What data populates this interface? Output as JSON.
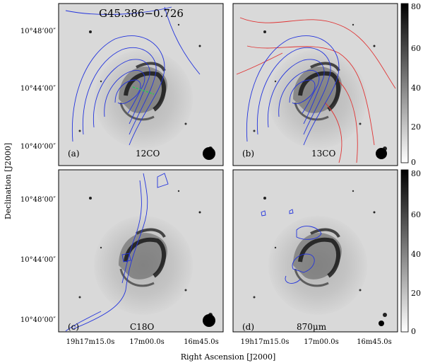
{
  "figure": {
    "source_name": "G45.386−0.726",
    "y_axis_title": "Declination [J2000]",
    "x_axis_title": "Right Ascension [J2000]",
    "dec_ticks": [
      "10°48’00″",
      "10°44’00″",
      "10°40’00″"
    ],
    "ra_ticks": [
      "19h17m15.0s",
      "17m00.0s",
      "16m45.0s"
    ],
    "colorbar_ticks": [
      "80",
      "60",
      "40",
      "20",
      "0"
    ],
    "colors": {
      "contour_12co": "#2233dd",
      "contour_13co": "#e03333",
      "arrow": "#22cc55"
    },
    "panels": [
      {
        "id": "a",
        "letter": "(a)",
        "tracer": "12CO",
        "contours": [
          "blue"
        ]
      },
      {
        "id": "b",
        "letter": "(b)",
        "tracer": "13CO",
        "contours": [
          "blue",
          "red"
        ]
      },
      {
        "id": "c",
        "letter": "(c)",
        "tracer": "C18O",
        "contours": [
          "blue"
        ]
      },
      {
        "id": "d",
        "letter": "(d)",
        "tracer": "870μm",
        "contours": [
          "blue"
        ]
      }
    ]
  }
}
